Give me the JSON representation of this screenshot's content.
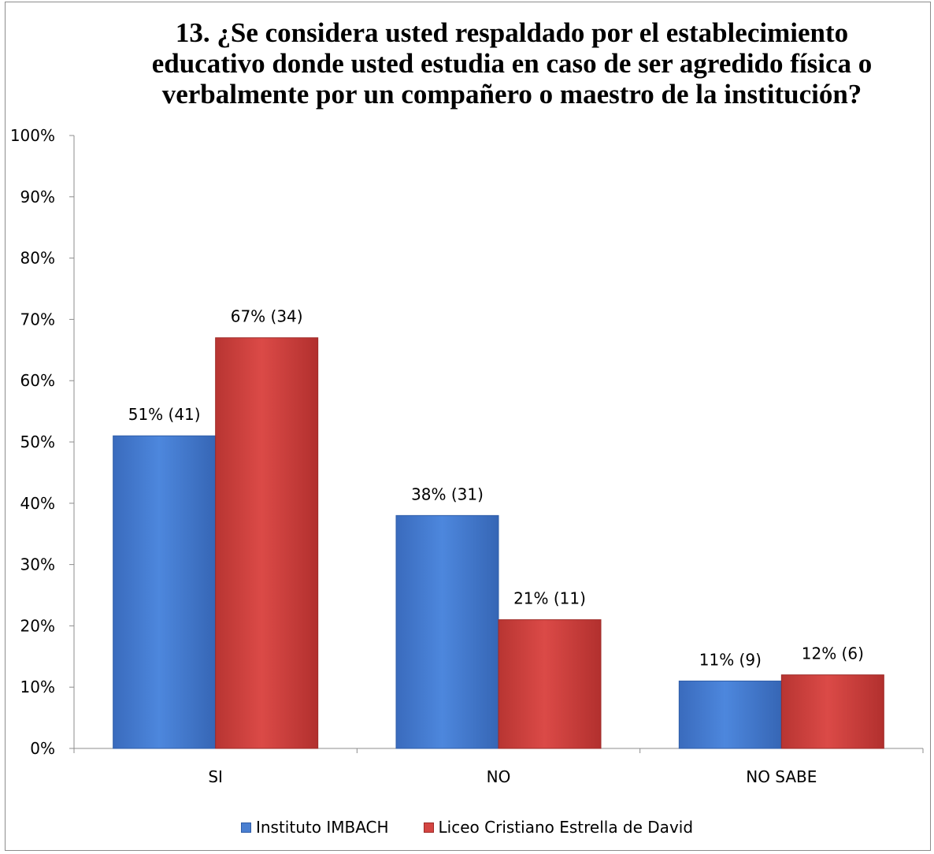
{
  "chart_data": {
    "type": "bar",
    "title": "13. ¿Se considera usted respaldado por el establecimiento educativo donde usted estudia en caso de ser agredido física o verbalmente por un compañero o maestro de la institución?",
    "categories": [
      "SI",
      "NO",
      "NO SABE"
    ],
    "series": [
      {
        "name": "Instituto IMBACH",
        "values": [
          51,
          38,
          11
        ],
        "labels": [
          "51% (41)",
          "38% (31)",
          "11% (9)"
        ],
        "color": "#4a7fd1"
      },
      {
        "name": "Liceo Cristiano Estrella de David",
        "values": [
          67,
          21,
          12
        ],
        "labels": [
          "67% (34)",
          "21% (11)",
          "12% (6)"
        ],
        "color": "#d44542"
      }
    ],
    "ylim": [
      0,
      100
    ],
    "y_ticks": [
      "0%",
      "10%",
      "20%",
      "30%",
      "40%",
      "50%",
      "60%",
      "70%",
      "80%",
      "90%",
      "100%"
    ],
    "xlabel": "",
    "ylabel": "",
    "grid": false,
    "legend_position": "bottom"
  }
}
